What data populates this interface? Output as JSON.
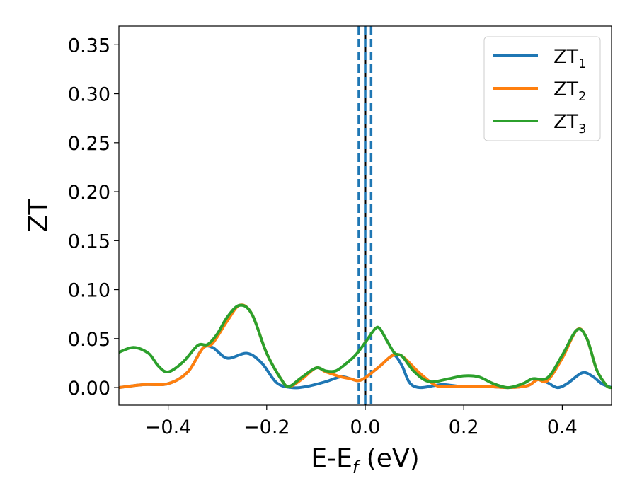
{
  "chart_data": {
    "type": "line",
    "xlabel": "E-E",
    "xlabel_sub": "f",
    "xlabel_unit": " (eV)",
    "ylabel": "ZT",
    "xlim": [
      -0.5,
      0.5
    ],
    "ylim": [
      -0.018,
      0.369
    ],
    "xticks": [
      -0.4,
      -0.2,
      0.0,
      0.2,
      0.4
    ],
    "xtick_labels": [
      "−0.4",
      "−0.2",
      "0.0",
      "0.2",
      "0.4"
    ],
    "yticks": [
      0.0,
      0.05,
      0.1,
      0.15,
      0.2,
      0.25,
      0.3,
      0.35
    ],
    "ytick_labels": [
      "0.00",
      "0.05",
      "0.10",
      "0.15",
      "0.20",
      "0.25",
      "0.30",
      "0.35"
    ],
    "grid": false,
    "legend_position": "top-right",
    "vertical_lines": [
      {
        "x": 0.0,
        "style": "solid",
        "color": "#000000"
      },
      {
        "x": -0.013,
        "style": "dashed",
        "color": "#1f77b4"
      },
      {
        "x": 0.0,
        "style": "dashed",
        "color": "#1f77b4"
      },
      {
        "x": 0.012,
        "style": "dashed",
        "color": "#1f77b4"
      }
    ],
    "series": [
      {
        "name": "ZT",
        "subscript": "1",
        "color": "#1f77b4",
        "points": [
          [
            -0.5,
            0.0
          ],
          [
            -0.45,
            0.003
          ],
          [
            -0.4,
            0.004
          ],
          [
            -0.36,
            0.016
          ],
          [
            -0.33,
            0.04
          ],
          [
            -0.31,
            0.041
          ],
          [
            -0.28,
            0.03
          ],
          [
            -0.24,
            0.035
          ],
          [
            -0.21,
            0.025
          ],
          [
            -0.18,
            0.005
          ],
          [
            -0.15,
            0.0
          ],
          [
            -0.12,
            0.001
          ],
          [
            -0.08,
            0.006
          ],
          [
            -0.05,
            0.011
          ],
          [
            -0.03,
            0.009
          ],
          [
            -0.015,
            0.007
          ],
          [
            0.0,
            0.01
          ],
          [
            0.03,
            0.022
          ],
          [
            0.05,
            0.031
          ],
          [
            0.06,
            0.033
          ],
          [
            0.075,
            0.022
          ],
          [
            0.09,
            0.005
          ],
          [
            0.11,
            0.0
          ],
          [
            0.14,
            0.002
          ],
          [
            0.16,
            0.003
          ],
          [
            0.2,
            0.001
          ],
          [
            0.25,
            0.001
          ],
          [
            0.29,
            0.0
          ],
          [
            0.33,
            0.002
          ],
          [
            0.35,
            0.008
          ],
          [
            0.37,
            0.005
          ],
          [
            0.39,
            0.0
          ],
          [
            0.41,
            0.004
          ],
          [
            0.44,
            0.015
          ],
          [
            0.46,
            0.012
          ],
          [
            0.48,
            0.004
          ],
          [
            0.5,
            0.0
          ]
        ]
      },
      {
        "name": "ZT",
        "subscript": "2",
        "color": "#ff7f0e",
        "points": [
          [
            -0.5,
            0.0
          ],
          [
            -0.45,
            0.003
          ],
          [
            -0.4,
            0.004
          ],
          [
            -0.36,
            0.016
          ],
          [
            -0.33,
            0.04
          ],
          [
            -0.31,
            0.045
          ],
          [
            -0.28,
            0.068
          ],
          [
            -0.255,
            0.084
          ],
          [
            -0.23,
            0.075
          ],
          [
            -0.2,
            0.035
          ],
          [
            -0.17,
            0.008
          ],
          [
            -0.155,
            0.001
          ],
          [
            -0.13,
            0.008
          ],
          [
            -0.1,
            0.02
          ],
          [
            -0.08,
            0.016
          ],
          [
            -0.05,
            0.011
          ],
          [
            -0.03,
            0.009
          ],
          [
            -0.015,
            0.007
          ],
          [
            0.0,
            0.01
          ],
          [
            0.03,
            0.022
          ],
          [
            0.05,
            0.031
          ],
          [
            0.065,
            0.034
          ],
          [
            0.08,
            0.03
          ],
          [
            0.11,
            0.015
          ],
          [
            0.14,
            0.003
          ],
          [
            0.16,
            0.001
          ],
          [
            0.2,
            0.001
          ],
          [
            0.25,
            0.001
          ],
          [
            0.29,
            0.0
          ],
          [
            0.33,
            0.002
          ],
          [
            0.35,
            0.008
          ],
          [
            0.37,
            0.007
          ],
          [
            0.4,
            0.03
          ],
          [
            0.43,
            0.059
          ],
          [
            0.45,
            0.05
          ],
          [
            0.47,
            0.018
          ],
          [
            0.49,
            0.002
          ],
          [
            0.5,
            0.0
          ]
        ]
      },
      {
        "name": "ZT",
        "subscript": "3",
        "color": "#2ca02c",
        "points": [
          [
            -0.5,
            0.036
          ],
          [
            -0.47,
            0.041
          ],
          [
            -0.44,
            0.035
          ],
          [
            -0.42,
            0.022
          ],
          [
            -0.4,
            0.016
          ],
          [
            -0.37,
            0.026
          ],
          [
            -0.34,
            0.043
          ],
          [
            -0.32,
            0.044
          ],
          [
            -0.3,
            0.055
          ],
          [
            -0.28,
            0.072
          ],
          [
            -0.255,
            0.084
          ],
          [
            -0.23,
            0.075
          ],
          [
            -0.2,
            0.035
          ],
          [
            -0.17,
            0.008
          ],
          [
            -0.155,
            0.001
          ],
          [
            -0.13,
            0.01
          ],
          [
            -0.1,
            0.02
          ],
          [
            -0.08,
            0.017
          ],
          [
            -0.06,
            0.017
          ],
          [
            -0.04,
            0.024
          ],
          [
            -0.02,
            0.033
          ],
          [
            0.0,
            0.046
          ],
          [
            0.02,
            0.06
          ],
          [
            0.03,
            0.06
          ],
          [
            0.045,
            0.047
          ],
          [
            0.06,
            0.035
          ],
          [
            0.075,
            0.032
          ],
          [
            0.1,
            0.016
          ],
          [
            0.13,
            0.006
          ],
          [
            0.17,
            0.009
          ],
          [
            0.2,
            0.012
          ],
          [
            0.23,
            0.011
          ],
          [
            0.26,
            0.004
          ],
          [
            0.29,
            0.0
          ],
          [
            0.32,
            0.004
          ],
          [
            0.34,
            0.009
          ],
          [
            0.37,
            0.01
          ],
          [
            0.4,
            0.033
          ],
          [
            0.43,
            0.059
          ],
          [
            0.45,
            0.05
          ],
          [
            0.47,
            0.018
          ],
          [
            0.49,
            0.002
          ],
          [
            0.5,
            0.0
          ]
        ]
      }
    ]
  }
}
